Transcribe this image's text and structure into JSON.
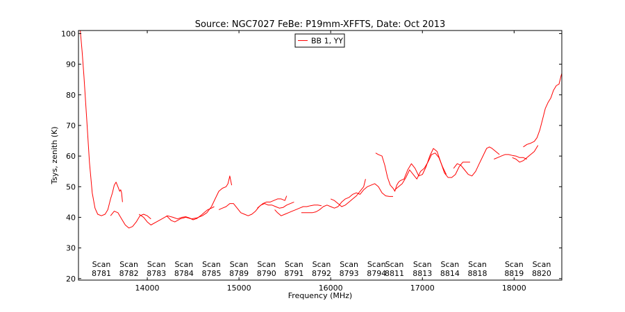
{
  "chart_data": {
    "type": "line",
    "title": "Source: NGC7027 FeBe: P19mm-XFFTS, Date: Oct 2013",
    "xlabel": "Frequency (MHz)",
    "ylabel": "Tsys, zenith (K)",
    "xlim": [
      13250,
      18520
    ],
    "ylim": [
      19.5,
      101
    ],
    "xticks": [
      14000,
      15000,
      16000,
      17000,
      18000
    ],
    "yticks": [
      20,
      30,
      40,
      50,
      60,
      70,
      80,
      90,
      100
    ],
    "grid": false,
    "legend": {
      "position": "top-center",
      "entries": [
        {
          "label": "BB 1, YY",
          "color": "#ff0000"
        }
      ]
    },
    "series": [
      {
        "name": "BB 1, YY",
        "color": "#ff0000",
        "segments": [
          [
            [
              13270,
              101
            ],
            [
              13290,
              94
            ],
            [
              13310,
              86
            ],
            [
              13340,
              72
            ],
            [
              13370,
              58
            ],
            [
              13400,
              48
            ],
            [
              13430,
              43
            ],
            [
              13460,
              41
            ],
            [
              13500,
              40.5
            ],
            [
              13540,
              41
            ],
            [
              13570,
              42.5
            ],
            [
              13600,
              46
            ],
            [
              13620,
              48
            ],
            [
              13640,
              50.5
            ],
            [
              13660,
              51.5
            ],
            [
              13680,
              50
            ],
            [
              13700,
              48.5
            ],
            [
              13710,
              49
            ],
            [
              13720,
              48
            ],
            [
              13730,
              45
            ]
          ],
          [
            [
              13600,
              40.5
            ],
            [
              13640,
              42
            ],
            [
              13680,
              41.5
            ],
            [
              13720,
              39.5
            ],
            [
              13760,
              37.5
            ],
            [
              13800,
              36.5
            ],
            [
              13840,
              37
            ],
            [
              13880,
              38.5
            ],
            [
              13920,
              40.5
            ],
            [
              13960,
              41
            ],
            [
              14000,
              40.5
            ],
            [
              14040,
              39.5
            ]
          ],
          [
            [
              13910,
              41
            ],
            [
              13960,
              40
            ],
            [
              14000,
              38.5
            ],
            [
              14040,
              37.5
            ],
            [
              14100,
              38.5
            ],
            [
              14160,
              39.5
            ],
            [
              14220,
              40.5
            ],
            [
              14280,
              40
            ],
            [
              14330,
              39.5
            ],
            [
              14380,
              40
            ],
            [
              14420,
              40.2
            ],
            [
              14460,
              39.8
            ],
            [
              14500,
              39.2
            ],
            [
              14540,
              39.6
            ],
            [
              14580,
              40.5
            ],
            [
              14620,
              41.5
            ],
            [
              14660,
              42.5
            ],
            [
              14700,
              43
            ],
            [
              14730,
              43.5
            ]
          ],
          [
            [
              14210,
              40.5
            ],
            [
              14260,
              39
            ],
            [
              14300,
              38.5
            ],
            [
              14360,
              39.5
            ],
            [
              14420,
              40
            ],
            [
              14480,
              39.5
            ],
            [
              14540,
              39.8
            ],
            [
              14600,
              40.5
            ],
            [
              14650,
              41.5
            ],
            [
              14700,
              43.5
            ],
            [
              14740,
              46
            ],
            [
              14780,
              48.5
            ],
            [
              14820,
              49.5
            ],
            [
              14860,
              50
            ],
            [
              14880,
              51
            ],
            [
              14900,
              53.5
            ],
            [
              14920,
              50.5
            ]
          ],
          [
            [
              14780,
              42.5
            ],
            [
              14820,
              43
            ],
            [
              14860,
              43.5
            ],
            [
              14900,
              44.5
            ],
            [
              14940,
              44.5
            ],
            [
              14980,
              43
            ],
            [
              15020,
              41.5
            ],
            [
              15060,
              41
            ],
            [
              15100,
              40.5
            ],
            [
              15140,
              41
            ],
            [
              15180,
              42
            ],
            [
              15220,
              43.5
            ],
            [
              15260,
              44.5
            ],
            [
              15300,
              45
            ],
            [
              15340,
              45
            ],
            [
              15380,
              45.5
            ],
            [
              15420,
              46
            ],
            [
              15460,
              46
            ],
            [
              15500,
              45.5
            ],
            [
              15520,
              47
            ]
          ],
          [
            [
              15200,
              43
            ],
            [
              15240,
              44
            ],
            [
              15280,
              44.5
            ],
            [
              15320,
              44
            ],
            [
              15360,
              44
            ],
            [
              15400,
              43.5
            ],
            [
              15440,
              43
            ],
            [
              15480,
              43.2
            ],
            [
              15520,
              44
            ],
            [
              15560,
              44.5
            ],
            [
              15600,
              45
            ]
          ],
          [
            [
              15390,
              42.5
            ],
            [
              15420,
              41.5
            ],
            [
              15460,
              40.5
            ],
            [
              15500,
              41
            ],
            [
              15540,
              41.5
            ],
            [
              15580,
              42
            ],
            [
              15620,
              42.5
            ],
            [
              15660,
              43
            ],
            [
              15700,
              43.5
            ],
            [
              15740,
              43.5
            ],
            [
              15780,
              43.8
            ],
            [
              15820,
              44
            ],
            [
              15860,
              44
            ],
            [
              15900,
              43.8
            ]
          ],
          [
            [
              15680,
              41.5
            ],
            [
              15720,
              41.5
            ],
            [
              15760,
              41.5
            ],
            [
              15800,
              41.5
            ],
            [
              15840,
              41.8
            ],
            [
              15880,
              42.5
            ],
            [
              15920,
              43.5
            ],
            [
              15960,
              44
            ],
            [
              16000,
              43.5
            ],
            [
              16040,
              43
            ],
            [
              16080,
              43.5
            ],
            [
              16120,
              45
            ],
            [
              16160,
              46
            ],
            [
              16200,
              46.5
            ],
            [
              16240,
              47.5
            ],
            [
              16280,
              48
            ],
            [
              16320,
              47.5
            ],
            [
              16360,
              49
            ],
            [
              16400,
              50
            ],
            [
              16440,
              50.5
            ],
            [
              16480,
              51
            ],
            [
              16520,
              50
            ],
            [
              16560,
              48
            ],
            [
              16600,
              47
            ],
            [
              16640,
              46.8
            ],
            [
              16680,
              46.8
            ]
          ],
          [
            [
              16000,
              46
            ],
            [
              16040,
              45.5
            ],
            [
              16080,
              44.5
            ],
            [
              16120,
              43.5
            ],
            [
              16160,
              44
            ],
            [
              16200,
              45
            ],
            [
              16240,
              46
            ],
            [
              16280,
              47
            ],
            [
              16320,
              48.5
            ],
            [
              16360,
              50
            ],
            [
              16380,
              52.5
            ]
          ],
          [
            [
              16490,
              61
            ],
            [
              16520,
              60.5
            ],
            [
              16560,
              60
            ],
            [
              16590,
              57
            ],
            [
              16620,
              53
            ],
            [
              16650,
              50.5
            ],
            [
              16680,
              49.5
            ],
            [
              16700,
              48.5
            ],
            [
              16720,
              50.5
            ],
            [
              16740,
              51.5
            ],
            [
              16760,
              52
            ],
            [
              16800,
              52.5
            ],
            [
              16840,
              55.5
            ],
            [
              16880,
              57.5
            ],
            [
              16920,
              56
            ],
            [
              16960,
              53.5
            ],
            [
              17000,
              54
            ],
            [
              17040,
              56.5
            ],
            [
              17080,
              60
            ],
            [
              17120,
              62.5
            ],
            [
              17160,
              61.5
            ],
            [
              17200,
              58
            ],
            [
              17240,
              54.5
            ],
            [
              17280,
              53
            ],
            [
              17320,
              53
            ],
            [
              17360,
              54
            ],
            [
              17400,
              56.5
            ],
            [
              17440,
              58
            ],
            [
              17480,
              58
            ],
            [
              17520,
              58
            ]
          ],
          [
            [
              16700,
              49
            ],
            [
              16740,
              50
            ],
            [
              16780,
              51
            ],
            [
              16820,
              53
            ],
            [
              16860,
              55.5
            ],
            [
              16900,
              54
            ],
            [
              16940,
              52.5
            ],
            [
              16980,
              55
            ],
            [
              17020,
              56
            ],
            [
              17060,
              58
            ],
            [
              17100,
              60.5
            ],
            [
              17140,
              61
            ],
            [
              17180,
              59.5
            ],
            [
              17220,
              56.5
            ],
            [
              17260,
              54
            ]
          ],
          [
            [
              17340,
              56
            ],
            [
              17380,
              57.5
            ],
            [
              17420,
              57
            ],
            [
              17460,
              55.5
            ],
            [
              17500,
              54
            ],
            [
              17540,
              53.5
            ],
            [
              17580,
              55
            ],
            [
              17620,
              57.5
            ],
            [
              17660,
              60
            ],
            [
              17700,
              62.5
            ],
            [
              17730,
              63
            ],
            [
              17760,
              62.5
            ],
            [
              17800,
              61.5
            ],
            [
              17840,
              60.5
            ]
          ],
          [
            [
              17780,
              59
            ],
            [
              17820,
              59.5
            ],
            [
              17860,
              60
            ],
            [
              17900,
              60.5
            ],
            [
              17940,
              60.5
            ],
            [
              17980,
              60.2
            ],
            [
              18020,
              60
            ],
            [
              18060,
              59.5
            ],
            [
              18100,
              59.5
            ],
            [
              18140,
              59
            ]
          ],
          [
            [
              17980,
              59.5
            ],
            [
              18020,
              59
            ],
            [
              18060,
              58
            ],
            [
              18100,
              58.5
            ],
            [
              18140,
              59.5
            ],
            [
              18180,
              60.5
            ],
            [
              18220,
              61.5
            ],
            [
              18260,
              63.5
            ]
          ],
          [
            [
              18100,
              63
            ],
            [
              18140,
              63.8
            ],
            [
              18180,
              64.2
            ],
            [
              18220,
              64.8
            ],
            [
              18250,
              66
            ],
            [
              18280,
              68.5
            ],
            [
              18310,
              72
            ],
            [
              18340,
              75.5
            ],
            [
              18370,
              77.5
            ],
            [
              18400,
              79
            ],
            [
              18430,
              81.5
            ],
            [
              18460,
              83
            ],
            [
              18490,
              83.5
            ],
            [
              18510,
              86
            ],
            [
              18520,
              87
            ]
          ]
        ]
      }
    ],
    "annotations": [
      {
        "line1": "Scan",
        "line2": "8781",
        "x": 13500
      },
      {
        "line1": "Scan",
        "line2": "8782",
        "x": 13800
      },
      {
        "line1": "Scan",
        "line2": "8783",
        "x": 14100
      },
      {
        "line1": "Scan",
        "line2": "8784",
        "x": 14400
      },
      {
        "line1": "Scan",
        "line2": "8785",
        "x": 14700
      },
      {
        "line1": "Scan",
        "line2": "8789",
        "x": 15000
      },
      {
        "line1": "Scan",
        "line2": "8790",
        "x": 15300
      },
      {
        "line1": "Scan",
        "line2": "8791",
        "x": 15600
      },
      {
        "line1": "Scan",
        "line2": "8792",
        "x": 15900
      },
      {
        "line1": "Scan",
        "line2": "8793",
        "x": 16200
      },
      {
        "line1": "Scan",
        "line2": "8794",
        "x": 16500
      },
      {
        "line1": "Scan",
        "line2": "8811",
        "x": 16695
      },
      {
        "line1": "Scan",
        "line2": "8813",
        "x": 17000
      },
      {
        "line1": "Scan",
        "line2": "8814",
        "x": 17300
      },
      {
        "line1": "Scan",
        "line2": "8818",
        "x": 17600
      },
      {
        "line1": "Scan",
        "line2": "8819",
        "x": 18000
      },
      {
        "line1": "Scan",
        "line2": "8820",
        "x": 18300
      }
    ]
  }
}
